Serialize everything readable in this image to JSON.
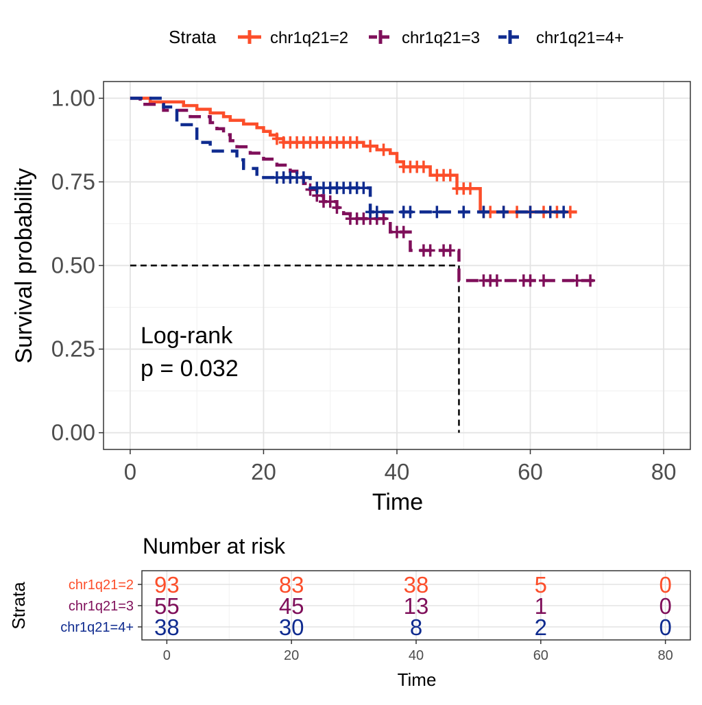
{
  "legend": {
    "title": "Strata",
    "entries": [
      "chr1q21=2",
      "chr1q21=3",
      "chr1q21=4+"
    ]
  },
  "annotation": {
    "line1": "Log-rank",
    "line2": "p = 0.032"
  },
  "risk_table": {
    "title": "Number at risk",
    "ylabel": "Strata",
    "xlabel": "Time",
    "times": [
      0,
      20,
      40,
      60,
      80
    ],
    "tick_labels": [
      "0",
      "20",
      "40",
      "60",
      "80"
    ],
    "rows": [
      {
        "label": "chr1q21=2",
        "counts": [
          "93",
          "83",
          "38",
          "5",
          "0"
        ]
      },
      {
        "label": "chr1q21=3",
        "counts": [
          "55",
          "45",
          "13",
          "1",
          "0"
        ]
      },
      {
        "label": "chr1q21=4+",
        "counts": [
          "38",
          "30",
          "8",
          "2",
          "0"
        ]
      }
    ]
  },
  "chart_data": {
    "type": "line",
    "subtype": "kaplan-meier",
    "title": "",
    "xlabel": "Time",
    "ylabel": "Survival probability",
    "xlim": [
      -4,
      84
    ],
    "ylim": [
      -0.05,
      1.05
    ],
    "x_ticks": [
      0,
      20,
      40,
      60,
      80
    ],
    "x_tick_labels": [
      "0",
      "20",
      "40",
      "60",
      "80"
    ],
    "y_ticks": [
      0,
      0.25,
      0.5,
      0.75,
      1
    ],
    "y_tick_labels": [
      "0.00",
      "0.25",
      "0.50",
      "0.75",
      "1.00"
    ],
    "grid": true,
    "legend_position": "top",
    "median_line": {
      "y": 0.5,
      "x": 49.3
    },
    "series": [
      {
        "name": "chr1q21=2",
        "color": "#FC4E2A",
        "dash": "solid",
        "steps": [
          [
            0,
            1.0
          ],
          [
            3,
            0.989
          ],
          [
            8,
            0.978
          ],
          [
            10,
            0.967
          ],
          [
            12,
            0.956
          ],
          [
            14,
            0.945
          ],
          [
            15,
            0.934
          ],
          [
            17,
            0.923
          ],
          [
            19,
            0.912
          ],
          [
            20,
            0.901
          ],
          [
            21,
            0.89
          ],
          [
            22,
            0.879
          ],
          [
            23,
            0.868
          ],
          [
            35,
            0.857
          ],
          [
            37,
            0.846
          ],
          [
            39,
            0.835
          ],
          [
            40,
            0.81
          ],
          [
            41,
            0.795
          ],
          [
            45,
            0.77
          ],
          [
            49,
            0.73
          ],
          [
            52.5,
            0.66
          ],
          [
            67,
            0.66
          ]
        ],
        "censor_times": [
          22,
          23,
          24,
          25,
          26,
          27,
          28,
          29,
          30,
          31,
          32,
          33,
          34,
          36,
          38,
          41,
          42,
          43,
          44,
          46,
          47,
          48,
          49,
          50,
          51,
          53,
          54,
          56,
          58,
          60,
          62,
          64,
          66
        ]
      },
      {
        "name": "chr1q21=3",
        "color": "#7F0F5A",
        "dash": "dashed",
        "steps": [
          [
            0,
            1.0
          ],
          [
            1.5,
            0.982
          ],
          [
            5,
            0.964
          ],
          [
            9,
            0.945
          ],
          [
            12,
            0.927
          ],
          [
            13,
            0.909
          ],
          [
            14,
            0.891
          ],
          [
            15,
            0.873
          ],
          [
            16,
            0.855
          ],
          [
            18,
            0.836
          ],
          [
            20,
            0.818
          ],
          [
            22,
            0.8
          ],
          [
            24,
            0.782
          ],
          [
            25,
            0.764
          ],
          [
            26,
            0.745
          ],
          [
            27,
            0.727
          ],
          [
            28,
            0.709
          ],
          [
            29,
            0.691
          ],
          [
            31,
            0.673
          ],
          [
            32,
            0.655
          ],
          [
            33,
            0.64
          ],
          [
            39,
            0.6
          ],
          [
            42,
            0.545
          ],
          [
            49.3,
            0.455
          ],
          [
            70,
            0.455
          ]
        ],
        "censor_times": [
          27,
          28,
          29,
          30,
          31,
          33,
          34,
          35,
          36,
          37,
          38,
          40,
          41,
          44,
          45,
          47,
          48,
          53,
          54,
          55,
          59,
          60,
          62,
          67,
          69
        ]
      },
      {
        "name": "chr1q21=4+",
        "color": "#0F2B8F",
        "dash": "dashed",
        "steps": [
          [
            0,
            1.0
          ],
          [
            5,
            0.974
          ],
          [
            7,
            0.921
          ],
          [
            10,
            0.868
          ],
          [
            12,
            0.842
          ],
          [
            16,
            0.816
          ],
          [
            17,
            0.79
          ],
          [
            19,
            0.763
          ],
          [
            27,
            0.732
          ],
          [
            36,
            0.66
          ],
          [
            66,
            0.66
          ]
        ],
        "censor_times": [
          22,
          23,
          24,
          25,
          26,
          28,
          29,
          30,
          31,
          32,
          33,
          34,
          35,
          36,
          37,
          41,
          42,
          46,
          50,
          53,
          56,
          60,
          63,
          65
        ]
      }
    ]
  }
}
